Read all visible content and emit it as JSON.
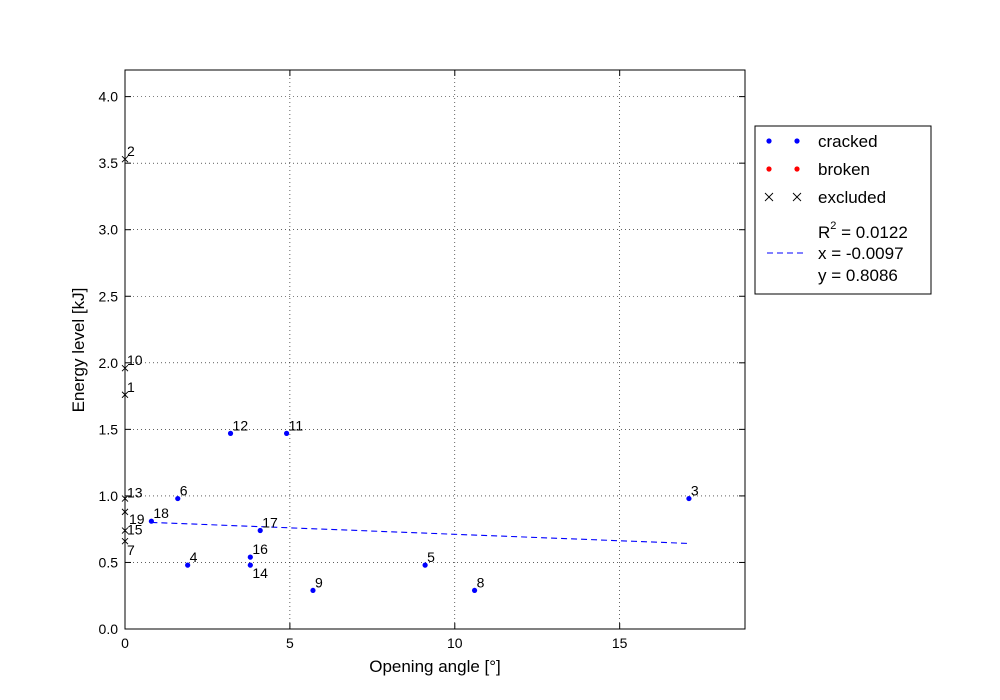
{
  "chart_data": {
    "type": "scatter",
    "xlabel": "Opening angle [°]",
    "ylabel": "Energy level [kJ]",
    "xlim": [
      0,
      18.8
    ],
    "ylim": [
      0,
      4.2
    ],
    "xticks": [
      0,
      5,
      10,
      15
    ],
    "xtick_labels": [
      "0",
      "5",
      "10",
      "15"
    ],
    "yticks": [
      0.0,
      0.5,
      1.0,
      1.5,
      2.0,
      2.5,
      3.0,
      3.5,
      4.0
    ],
    "ytick_labels": [
      "0.0",
      "0.5",
      "1.0",
      "1.5",
      "2.0",
      "2.5",
      "3.0",
      "3.5",
      "4.0"
    ],
    "grid": true,
    "legend_position": "outside-right",
    "colors": {
      "cracked": "#0000ff",
      "broken": "#ff0000",
      "excluded": "#000000",
      "fit": "#0000ff"
    },
    "series": [
      {
        "name": "cracked",
        "marker": "dot",
        "points": [
          {
            "label": "3",
            "x": 17.1,
            "y": 0.98
          },
          {
            "label": "4",
            "x": 1.9,
            "y": 0.48
          },
          {
            "label": "5",
            "x": 9.1,
            "y": 0.48
          },
          {
            "label": "6",
            "x": 1.6,
            "y": 0.98
          },
          {
            "label": "8",
            "x": 10.6,
            "y": 0.29
          },
          {
            "label": "9",
            "x": 5.7,
            "y": 0.29
          },
          {
            "label": "11",
            "x": 4.9,
            "y": 1.47
          },
          {
            "label": "12",
            "x": 3.2,
            "y": 1.47
          },
          {
            "label": "14",
            "x": 3.8,
            "y": 0.48
          },
          {
            "label": "16",
            "x": 3.8,
            "y": 0.54
          },
          {
            "label": "17",
            "x": 4.1,
            "y": 0.74
          },
          {
            "label": "18",
            "x": 0.8,
            "y": 0.81
          }
        ]
      },
      {
        "name": "broken",
        "marker": "dot",
        "points": []
      },
      {
        "name": "excluded",
        "marker": "x",
        "points": [
          {
            "label": "1",
            "x": 0.0,
            "y": 1.76
          },
          {
            "label": "2",
            "x": 0.0,
            "y": 3.53
          },
          {
            "label": "7",
            "x": 0.0,
            "y": 0.66
          },
          {
            "label": "10",
            "x": 0.0,
            "y": 1.96
          },
          {
            "label": "13",
            "x": 0.0,
            "y": 0.98
          },
          {
            "label": "15",
            "x": 0.0,
            "y": 0.74
          },
          {
            "label": "19",
            "x": 0.0,
            "y": 0.88
          }
        ]
      }
    ],
    "fit_line": {
      "x_range": [
        0.8,
        17.1
      ],
      "slope": -0.0097,
      "intercept": 0.8086,
      "r_squared_label": "0.0122",
      "legend_lines": [
        "x = -0.0097",
        "y = 0.8086"
      ]
    }
  }
}
